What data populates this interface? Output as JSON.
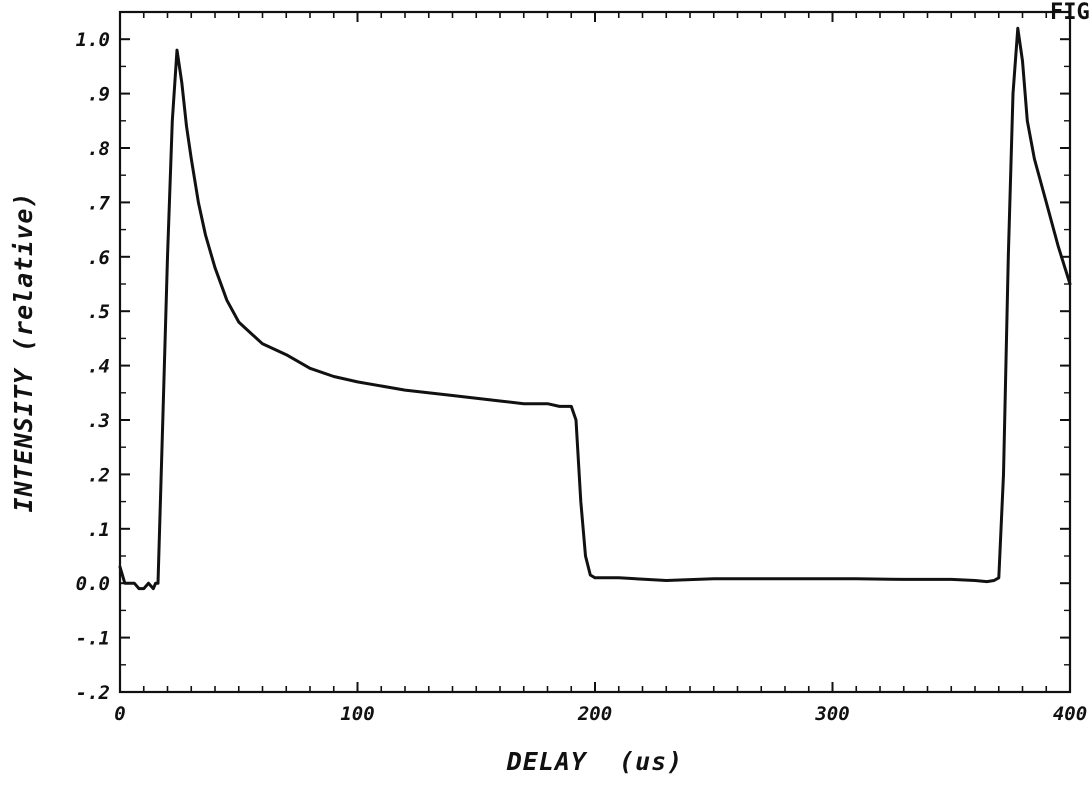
{
  "corner_text": "FIG",
  "chart_data": {
    "type": "line",
    "title": "",
    "xlabel": "DELAY  (us)",
    "ylabel": "INTENSITY (relative)",
    "xlim": [
      0,
      400
    ],
    "ylim": [
      -0.2,
      1.05
    ],
    "grid": false,
    "legend": "none",
    "line_color": "#111111",
    "x_ticks": [
      {
        "value": 0,
        "label": "0"
      },
      {
        "value": 100,
        "label": "100"
      },
      {
        "value": 200,
        "label": "200"
      },
      {
        "value": 300,
        "label": "300"
      },
      {
        "value": 400,
        "label": "400"
      }
    ],
    "y_ticks": [
      {
        "value": 1.0,
        "label": "1.0"
      },
      {
        "value": 0.9,
        "label": ".9"
      },
      {
        "value": 0.8,
        "label": ".8"
      },
      {
        "value": 0.7,
        "label": ".7"
      },
      {
        "value": 0.6,
        "label": ".6"
      },
      {
        "value": 0.5,
        "label": ".5"
      },
      {
        "value": 0.4,
        "label": ".4"
      },
      {
        "value": 0.3,
        "label": ".3"
      },
      {
        "value": 0.2,
        "label": ".2"
      },
      {
        "value": 0.1,
        "label": ".1"
      },
      {
        "value": 0.0,
        "label": "0.0"
      },
      {
        "value": -0.1,
        "label": "-.1"
      },
      {
        "value": -0.2,
        "label": "-.2"
      }
    ],
    "x_minor_step": 10,
    "y_minor_step": 0.05,
    "series": [
      {
        "x": [
          0,
          2,
          4,
          6,
          8,
          10,
          12,
          14,
          15,
          16,
          18,
          20,
          22,
          24,
          26,
          28,
          30,
          33,
          36,
          40,
          45,
          50,
          55,
          60,
          70,
          80,
          90,
          100,
          120,
          140,
          160,
          170,
          180,
          185,
          190,
          192,
          194,
          196,
          198,
          200,
          210,
          230,
          250,
          270,
          290,
          310,
          330,
          350,
          360,
          365,
          368,
          370,
          372,
          374,
          376,
          378,
          380,
          382,
          385,
          390,
          395,
          400
        ],
        "y": [
          0.03,
          0.0,
          0.0,
          0.0,
          -0.01,
          -0.01,
          0.0,
          -0.01,
          0.0,
          0.0,
          0.3,
          0.6,
          0.85,
          0.98,
          0.92,
          0.84,
          0.78,
          0.7,
          0.64,
          0.58,
          0.52,
          0.48,
          0.46,
          0.44,
          0.42,
          0.395,
          0.38,
          0.37,
          0.355,
          0.345,
          0.335,
          0.33,
          0.33,
          0.325,
          0.325,
          0.3,
          0.15,
          0.05,
          0.015,
          0.01,
          0.01,
          0.005,
          0.008,
          0.008,
          0.008,
          0.008,
          0.007,
          0.007,
          0.005,
          0.003,
          0.005,
          0.01,
          0.2,
          0.6,
          0.9,
          1.02,
          0.96,
          0.85,
          0.78,
          0.7,
          0.62,
          0.55
        ]
      }
    ]
  }
}
